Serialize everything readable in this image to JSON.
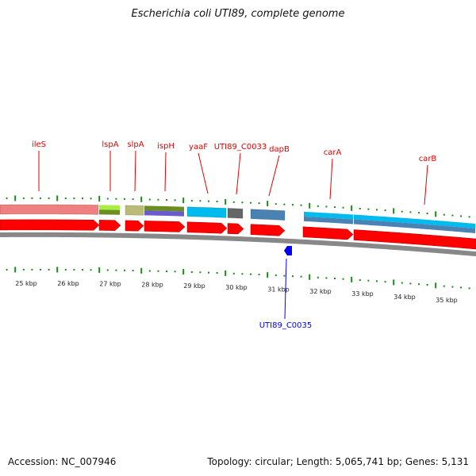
{
  "title": "Escherichia coli UTI89, complete genome",
  "accession": "Accession: NC_007946",
  "summary": "Topology: circular; Length: 5,065,741 bp; Genes: 5,131",
  "genes_forward": [
    "ileS",
    "lspA",
    "slpA",
    "ispH",
    "yaaF",
    "UTI89_C0033",
    "dapB",
    "carA",
    "carB"
  ],
  "genes_reverse": [
    "UTI89_C0035"
  ],
  "axis_labels": [
    "25 kbp",
    "26 kbp",
    "27 kbp",
    "28 kbp",
    "29 kbp",
    "30 kbp",
    "31 kbp",
    "32 kbp",
    "33 kbp",
    "34 kbp",
    "35 kbp"
  ],
  "colors": {
    "forward_gene": "#ff0000",
    "reverse_gene": "#0000ee",
    "tick": "#1a8a1a"
  }
}
